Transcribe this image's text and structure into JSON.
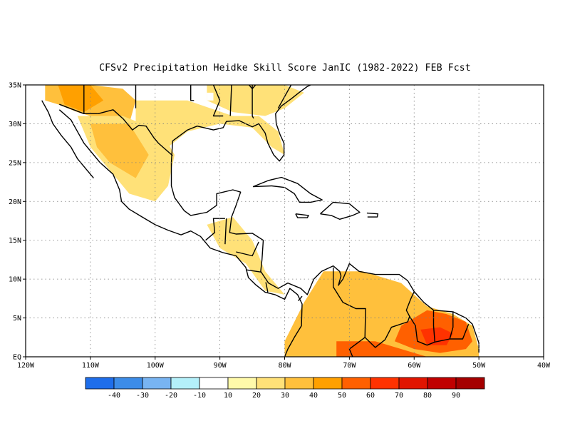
{
  "title": "CFSv2  Precipitation Heidke Skill Score JanIC (1982-2022) FEB Fcst",
  "map": {
    "lat_labels": [
      "35N",
      "30N",
      "25N",
      "20N",
      "15N",
      "10N",
      "5N",
      "EQ"
    ],
    "lon_labels": [
      "120W",
      "110W",
      "100W",
      "90W",
      "80W",
      "70W",
      "60W",
      "50W",
      "40W"
    ],
    "lon_range": [
      -120,
      -40
    ],
    "lat_range": [
      0,
      35
    ],
    "gridlines": "dotted",
    "skill_regions": [
      {
        "name": "us-southwest",
        "value": 30,
        "poly": [
          [
            -117,
            35
          ],
          [
            -110,
            35
          ],
          [
            -105,
            34.5
          ],
          [
            -103,
            33
          ],
          [
            -104,
            30
          ],
          [
            -108,
            30.5
          ],
          [
            -112,
            31.5
          ],
          [
            -115,
            32.5
          ],
          [
            -117,
            33
          ]
        ]
      },
      {
        "name": "us-southwest-core",
        "value": 40,
        "poly": [
          [
            -115,
            35
          ],
          [
            -110,
            35
          ],
          [
            -108,
            33
          ],
          [
            -111,
            31.5
          ],
          [
            -114,
            32.5
          ]
        ]
      },
      {
        "name": "mexico-north",
        "value": 20,
        "poly": [
          [
            -112,
            31
          ],
          [
            -105,
            31
          ],
          [
            -99,
            29
          ],
          [
            -97,
            26
          ],
          [
            -98,
            22
          ],
          [
            -100,
            20
          ],
          [
            -104,
            21
          ],
          [
            -107,
            24
          ],
          [
            -110,
            27
          ]
        ]
      },
      {
        "name": "mexico-north-core",
        "value": 30,
        "poly": [
          [
            -110,
            30
          ],
          [
            -104,
            30
          ],
          [
            -101,
            26
          ],
          [
            -103,
            23
          ],
          [
            -107,
            25
          ],
          [
            -109,
            27
          ]
        ]
      },
      {
        "name": "us-south",
        "value": 20,
        "poly": [
          [
            -103,
            33
          ],
          [
            -95,
            33
          ],
          [
            -88,
            31
          ],
          [
            -84,
            31
          ],
          [
            -81,
            29
          ],
          [
            -80,
            26
          ],
          [
            -82,
            27
          ],
          [
            -85,
            29.5
          ],
          [
            -90,
            30
          ],
          [
            -95,
            29
          ],
          [
            -98,
            27
          ],
          [
            -103,
            29
          ]
        ]
      },
      {
        "name": "us-southeast",
        "value": 20,
        "poly": [
          [
            -92,
            35
          ],
          [
            -80,
            35
          ],
          [
            -77,
            34
          ],
          [
            -80,
            32
          ],
          [
            -83,
            31
          ],
          [
            -88,
            31.5
          ],
          [
            -92,
            33
          ]
        ]
      },
      {
        "name": "central-america",
        "value": 20,
        "poly": [
          [
            -92,
            17
          ],
          [
            -88,
            18
          ],
          [
            -85,
            15
          ],
          [
            -83,
            11
          ],
          [
            -80,
            8
          ],
          [
            -83,
            8.5
          ],
          [
            -86,
            12
          ],
          [
            -90,
            14
          ]
        ]
      },
      {
        "name": "south-america-north",
        "value": 30,
        "poly": [
          [
            -80,
            2
          ],
          [
            -77,
            7
          ],
          [
            -74,
            11
          ],
          [
            -68,
            11
          ],
          [
            -62,
            9.5
          ],
          [
            -58,
            6.5
          ],
          [
            -54,
            5.5
          ],
          [
            -51,
            4
          ],
          [
            -50,
            1
          ],
          [
            -50,
            0
          ],
          [
            -80,
            0
          ]
        ]
      },
      {
        "name": "guyana-suriname",
        "value": 50,
        "poly": [
          [
            -62,
            4
          ],
          [
            -58,
            6
          ],
          [
            -55,
            5.5
          ],
          [
            -52,
            4.5
          ],
          [
            -51,
            2
          ],
          [
            -52,
            1
          ],
          [
            -56,
            0.5
          ],
          [
            -60,
            1
          ],
          [
            -63,
            2
          ]
        ]
      },
      {
        "name": "amazon-north",
        "value": 50,
        "poly": [
          [
            -72,
            2
          ],
          [
            -66,
            2
          ],
          [
            -62,
            1
          ],
          [
            -58,
            0
          ],
          [
            -72,
            0
          ]
        ]
      },
      {
        "name": "venezuela-west",
        "value": 30,
        "poly": [
          [
            -73,
            9
          ],
          [
            -69,
            11
          ],
          [
            -65,
            9
          ],
          [
            -67,
            6
          ],
          [
            -71,
            6
          ]
        ]
      },
      {
        "name": "guyana-core",
        "value": 60,
        "poly": [
          [
            -59,
            3.5
          ],
          [
            -56,
            3.8
          ],
          [
            -54,
            3
          ],
          [
            -55,
            1.5
          ],
          [
            -58,
            1.5
          ]
        ]
      }
    ],
    "negative_regions": [
      {
        "name": "tehuantepec",
        "value": -10,
        "poly": [
          [
            -95,
            17.5
          ],
          [
            -93.5,
            17
          ],
          [
            -93,
            16
          ],
          [
            -94.5,
            15.8
          ]
        ]
      },
      {
        "name": "gulf-coast",
        "value": -10,
        "poly": [
          [
            -92,
            34
          ],
          [
            -91,
            34
          ],
          [
            -91,
            33
          ],
          [
            -92,
            33
          ]
        ]
      }
    ]
  },
  "colorbar": {
    "labels": [
      "-40",
      "-30",
      "-20",
      "-10",
      "10",
      "20",
      "30",
      "40",
      "50",
      "60",
      "70",
      "80",
      "90"
    ],
    "colors": [
      "#1e6eeb",
      "#3c8ce8",
      "#78b4f2",
      "#b4f0fa",
      "#ffffff",
      "#fffaaa",
      "#ffe178",
      "#ffc03c",
      "#ffa000",
      "#ff6000",
      "#ff3200",
      "#e11400",
      "#c00000",
      "#a50000"
    ]
  },
  "colors": {
    "coast": "#000000",
    "grid": "#7f7f7f"
  }
}
